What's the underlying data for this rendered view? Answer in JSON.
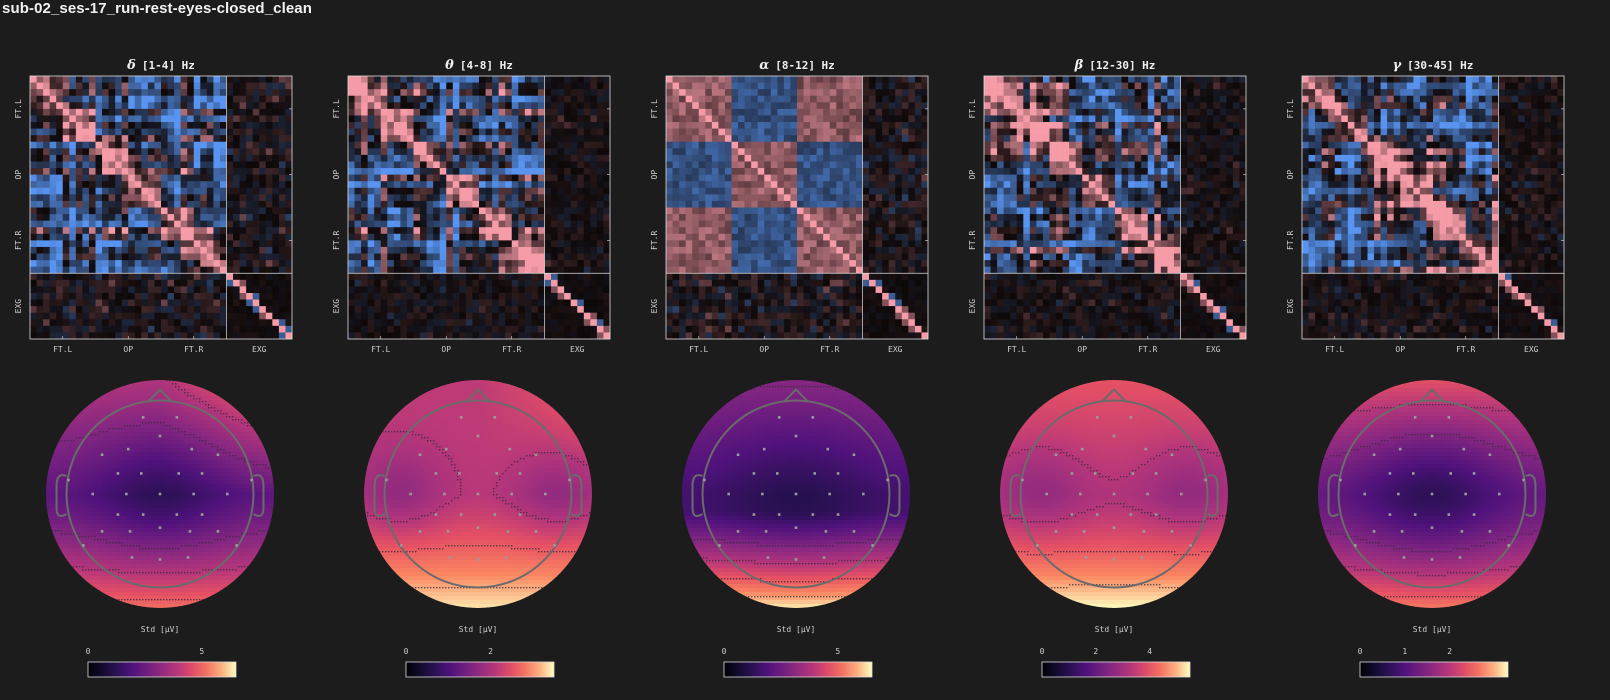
{
  "figure_title": "sub-02_ses-17_run-rest-eyes-closed_clean",
  "group_labels": [
    "FT.L",
    "OP",
    "FT.R",
    "EXG"
  ],
  "topo_colorbar_label": "Std [µV]",
  "colors": {
    "background": "#1c1c1c",
    "positive": "#f49aa5",
    "negative": "#5a96f0",
    "frame": "#dddddd",
    "head_outline": "#6b6b6b"
  },
  "chart_data": [
    {
      "type": "heatmap",
      "symbol": "δ",
      "title": "[1-4] Hz",
      "colorbar_ticks": [
        "0",
        "5"
      ],
      "colorbar_range": [
        0,
        6.5
      ],
      "topo_levels": "low center, high frontal-right and occipital"
    },
    {
      "type": "heatmap",
      "symbol": "θ",
      "title": "[4-8] Hz",
      "colorbar_ticks": [
        "0",
        "2"
      ],
      "colorbar_range": [
        0,
        3.5
      ],
      "topo_levels": "moderate, high posterior"
    },
    {
      "type": "heatmap",
      "symbol": "α",
      "title": "[8-12] Hz",
      "colorbar_ticks": [
        "0",
        "5"
      ],
      "colorbar_range": [
        0,
        6.5
      ],
      "topo_levels": "low central, high occipital"
    },
    {
      "type": "heatmap",
      "symbol": "β",
      "title": "[12-30] Hz",
      "colorbar_ticks": [
        "0",
        "2",
        "4"
      ],
      "colorbar_range": [
        0,
        5.5
      ],
      "topo_levels": "moderate, high posterior"
    },
    {
      "type": "heatmap",
      "symbol": "γ",
      "title": "[30-45] Hz",
      "colorbar_ticks": [
        "0",
        "1",
        "2"
      ],
      "colorbar_range": [
        0,
        3.3
      ],
      "topo_levels": "low center, high frontal and occipital"
    }
  ]
}
